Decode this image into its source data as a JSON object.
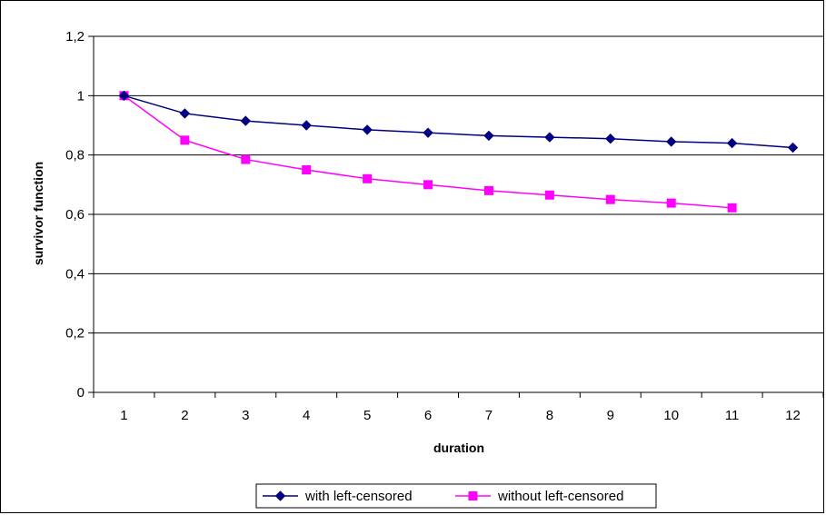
{
  "chart_data": {
    "type": "line",
    "x": [
      1,
      2,
      3,
      4,
      5,
      6,
      7,
      8,
      9,
      10,
      11,
      12
    ],
    "xlabel": "duration",
    "ylabel": "survivor function",
    "ylim": [
      0,
      1.2
    ],
    "yticks": [
      0,
      0.2,
      0.4,
      0.6,
      0.8,
      1,
      1.2
    ],
    "ytick_labels": [
      "0",
      "0,2",
      "0,4",
      "0,6",
      "0,8",
      "1",
      "1,2"
    ],
    "xtick_labels": [
      "1",
      "2",
      "3",
      "4",
      "5",
      "6",
      "7",
      "8",
      "9",
      "10",
      "11",
      "12"
    ],
    "grid": "horizontal",
    "legend_position": "bottom",
    "series": [
      {
        "name": "with left-censored",
        "color": "#000080",
        "marker": "diamond",
        "values": [
          1.0,
          0.94,
          0.915,
          0.9,
          0.885,
          0.875,
          0.865,
          0.86,
          0.855,
          0.845,
          0.84,
          0.825
        ]
      },
      {
        "name": "without left-censored",
        "color": "#FF00FF",
        "marker": "square",
        "values": [
          1.0,
          0.85,
          0.785,
          0.75,
          0.72,
          0.7,
          0.68,
          0.665,
          0.65,
          0.638,
          0.622,
          null
        ]
      }
    ]
  }
}
